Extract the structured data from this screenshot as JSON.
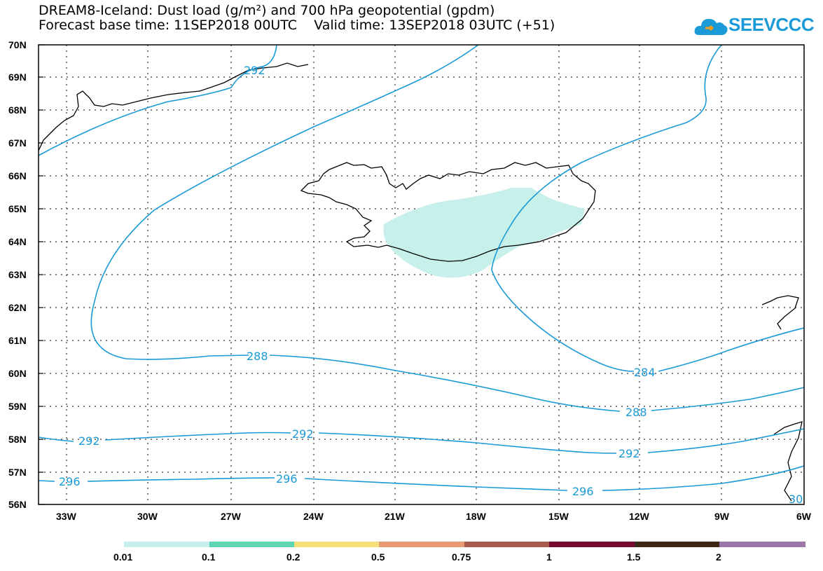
{
  "title": {
    "line1": "DREAM8-Iceland: Dust load (g/m²) and 700 hPa geopotential (gpdm)",
    "line2": "Forecast base time: 11SEP2018 00UTC    Valid time: 13SEP2018 03UTC (+51)"
  },
  "logo": {
    "text": "SEEVCCC",
    "color": "#1a9ad6"
  },
  "map": {
    "lat_labels": [
      "70N",
      "69N",
      "68N",
      "67N",
      "66N",
      "65N",
      "64N",
      "63N",
      "62N",
      "61N",
      "60N",
      "59N",
      "58N",
      "57N",
      "56N"
    ],
    "lon_labels": [
      "33W",
      "30W",
      "27W",
      "24W",
      "21W",
      "18W",
      "15W",
      "12W",
      "9W",
      "6W"
    ],
    "contour_color": "#1a9ad6",
    "contour_labels": [
      "292",
      "288",
      "284",
      "288",
      "292",
      "292",
      "292",
      "296",
      "296",
      "296",
      "30"
    ],
    "dust_color": "#c8f0ea"
  },
  "colorbar": {
    "colors": [
      "#c8f0ea",
      "#5ed6b4",
      "#f5e07a",
      "#e89a72",
      "#a55a4e",
      "#7a0a30",
      "#3a2716",
      "#9c78a8"
    ],
    "labels": [
      "0.01",
      "0.1",
      "0.2",
      "0.5",
      "0.75",
      "1",
      "1.5",
      "2"
    ]
  }
}
